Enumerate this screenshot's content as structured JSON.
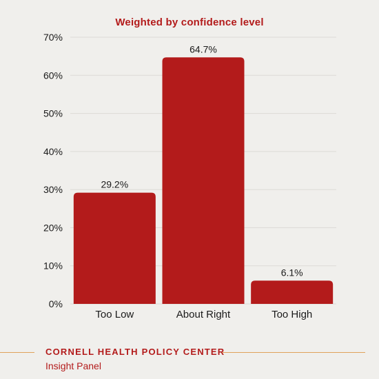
{
  "chart_data": {
    "type": "bar",
    "title": "Weighted by confidence level",
    "categories": [
      "Too Low",
      "About Right",
      "Too High"
    ],
    "values": [
      29.2,
      64.7,
      6.1
    ],
    "value_labels": [
      "29.2%",
      "64.7%",
      "6.1%"
    ],
    "y_ticks": [
      "0%",
      "10%",
      "20%",
      "30%",
      "40%",
      "50%",
      "60%",
      "70%"
    ],
    "ylim": [
      0,
      70
    ],
    "grid": true,
    "bar_color": "#b31b1b"
  },
  "footer": {
    "organization": "CORNELL HEALTH POLICY CENTER",
    "subtitle": "Insight Panel",
    "accent_color": "#e0a15a"
  }
}
